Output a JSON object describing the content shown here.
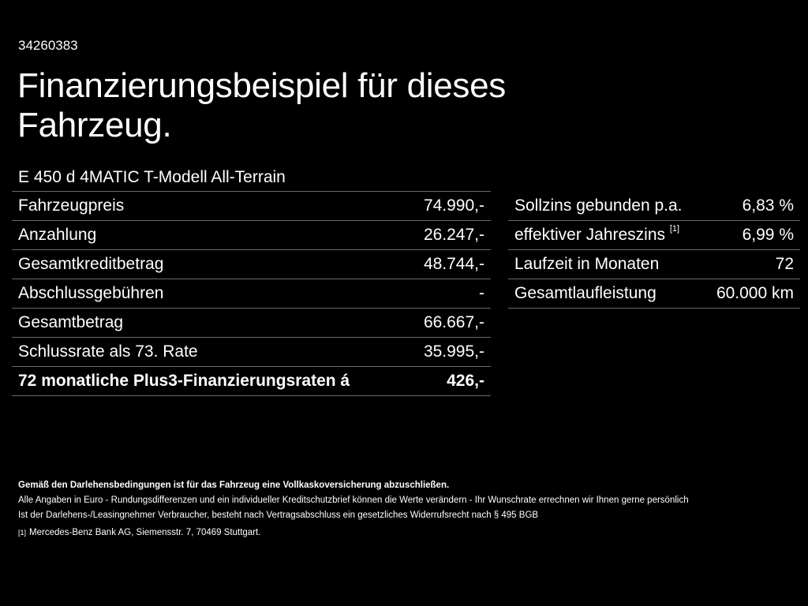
{
  "ref_number": "34260383",
  "title": "Finanzierungsbeispiel für dieses Fahrzeug.",
  "model": "E 450 d 4MATIC T-Modell All-Terrain",
  "left_table": {
    "rows": [
      {
        "label": "Fahrzeugpreis",
        "value": "74.990,-"
      },
      {
        "label": "Anzahlung",
        "value": "26.247,-"
      },
      {
        "label": "Gesamtkreditbetrag",
        "value": "48.744,-"
      },
      {
        "label": "Abschlussgebühren",
        "value": "-"
      },
      {
        "label": "Gesamtbetrag",
        "value": "66.667,-"
      },
      {
        "label": "Schlussrate als 73. Rate",
        "value": "35.995,-"
      },
      {
        "label": "72 monatliche Plus3-Finanzierungsraten á",
        "value": "426,-"
      }
    ]
  },
  "right_table": {
    "rows": [
      {
        "label": "Sollzins gebunden p.a.",
        "value": "6,83 %"
      },
      {
        "label": "effektiver Jahreszins",
        "footnote": "[1]",
        "value": "6,99 %"
      },
      {
        "label": "Laufzeit in Monaten",
        "value": "72"
      },
      {
        "label": "Gesamtlaufleistung",
        "value": "60.000 km"
      }
    ]
  },
  "footer": {
    "insurance_note": "Gemäß den Darlehensbedingungen ist für das Fahrzeug eine Vollkaskoversicherung abzuschließen.",
    "euro_note": "Alle Angaben in Euro - Rundungsdifferenzen und ein individueller Kreditschutzbrief können die Werte verändern - Ihr Wunschrate errechnen wir Ihnen gerne persönlich",
    "withdrawal_note": "Ist der Darlehens-/Leasingnehmer Verbraucher, besteht nach Vertragsabschluss ein gesetzliches Widerrufsrecht nach § 495 BGB",
    "footnote_mark": "[1]",
    "footnote_text": "Mercedes-Benz Bank AG, Siemensstr. 7, 70469 Stuttgart."
  },
  "colors": {
    "background": "#000000",
    "text": "#ffffff",
    "divider": "#6a6a6a"
  }
}
